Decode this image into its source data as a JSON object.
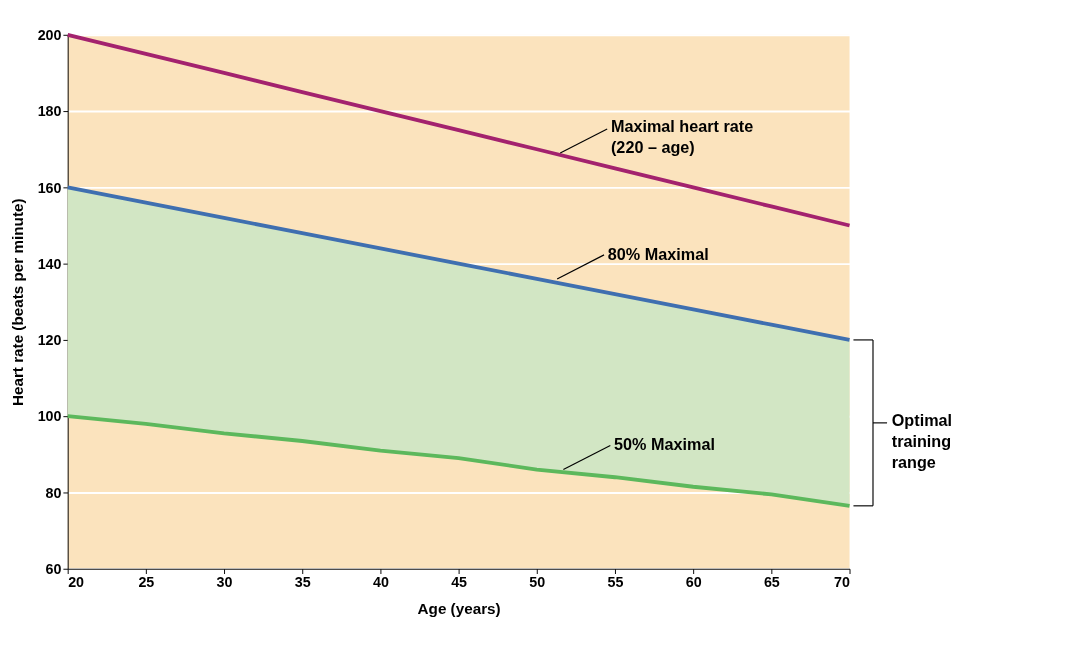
{
  "chart_data": {
    "type": "line",
    "xlabel": "Age (years)",
    "ylabel": "Heart rate (beats per minute)",
    "x": [
      20,
      25,
      30,
      35,
      40,
      45,
      50,
      55,
      60,
      65,
      70
    ],
    "series": [
      {
        "color": "#a3226e",
        "values": [
          200,
          195,
          190,
          185,
          180,
          175,
          170,
          165,
          160,
          155,
          150
        ]
      },
      {
        "color": "#3f6fb0",
        "values": [
          160,
          156,
          152,
          148,
          144,
          140,
          136,
          132,
          128,
          124,
          120
        ],
        "lower": [
          100,
          98,
          95.5,
          93.5,
          91,
          89,
          86,
          84,
          81.5,
          79.5,
          76.5
        ],
        "upper": [
          160,
          156,
          152,
          148,
          144,
          140,
          136,
          132,
          128,
          124,
          120
        ]
      },
      {
        "color": "#5cb85c",
        "values": [
          100,
          98,
          95.5,
          93.5,
          91,
          89,
          86,
          84,
          81.5,
          79.5,
          76.5
        ]
      }
    ],
    "xlim": [
      20,
      70
    ],
    "xticks": [
      20,
      25,
      30,
      35,
      40,
      45,
      50,
      55,
      60,
      65,
      70
    ],
    "ylim": [
      60,
      200
    ],
    "yticks": [
      60,
      80,
      100,
      120,
      140,
      160,
      180,
      200
    ],
    "grid": "y",
    "annotations": [
      {
        "text": "Maximal heart rate\n(220 – age)",
        "x": 51.5,
        "y": 169
      },
      {
        "text": "80% Maximal",
        "x": 51.3,
        "y": 136
      },
      {
        "text": "50% Maximal",
        "x": 51.7,
        "y": 86
      },
      "Optimal\ntraining\nrange"
    ]
  }
}
